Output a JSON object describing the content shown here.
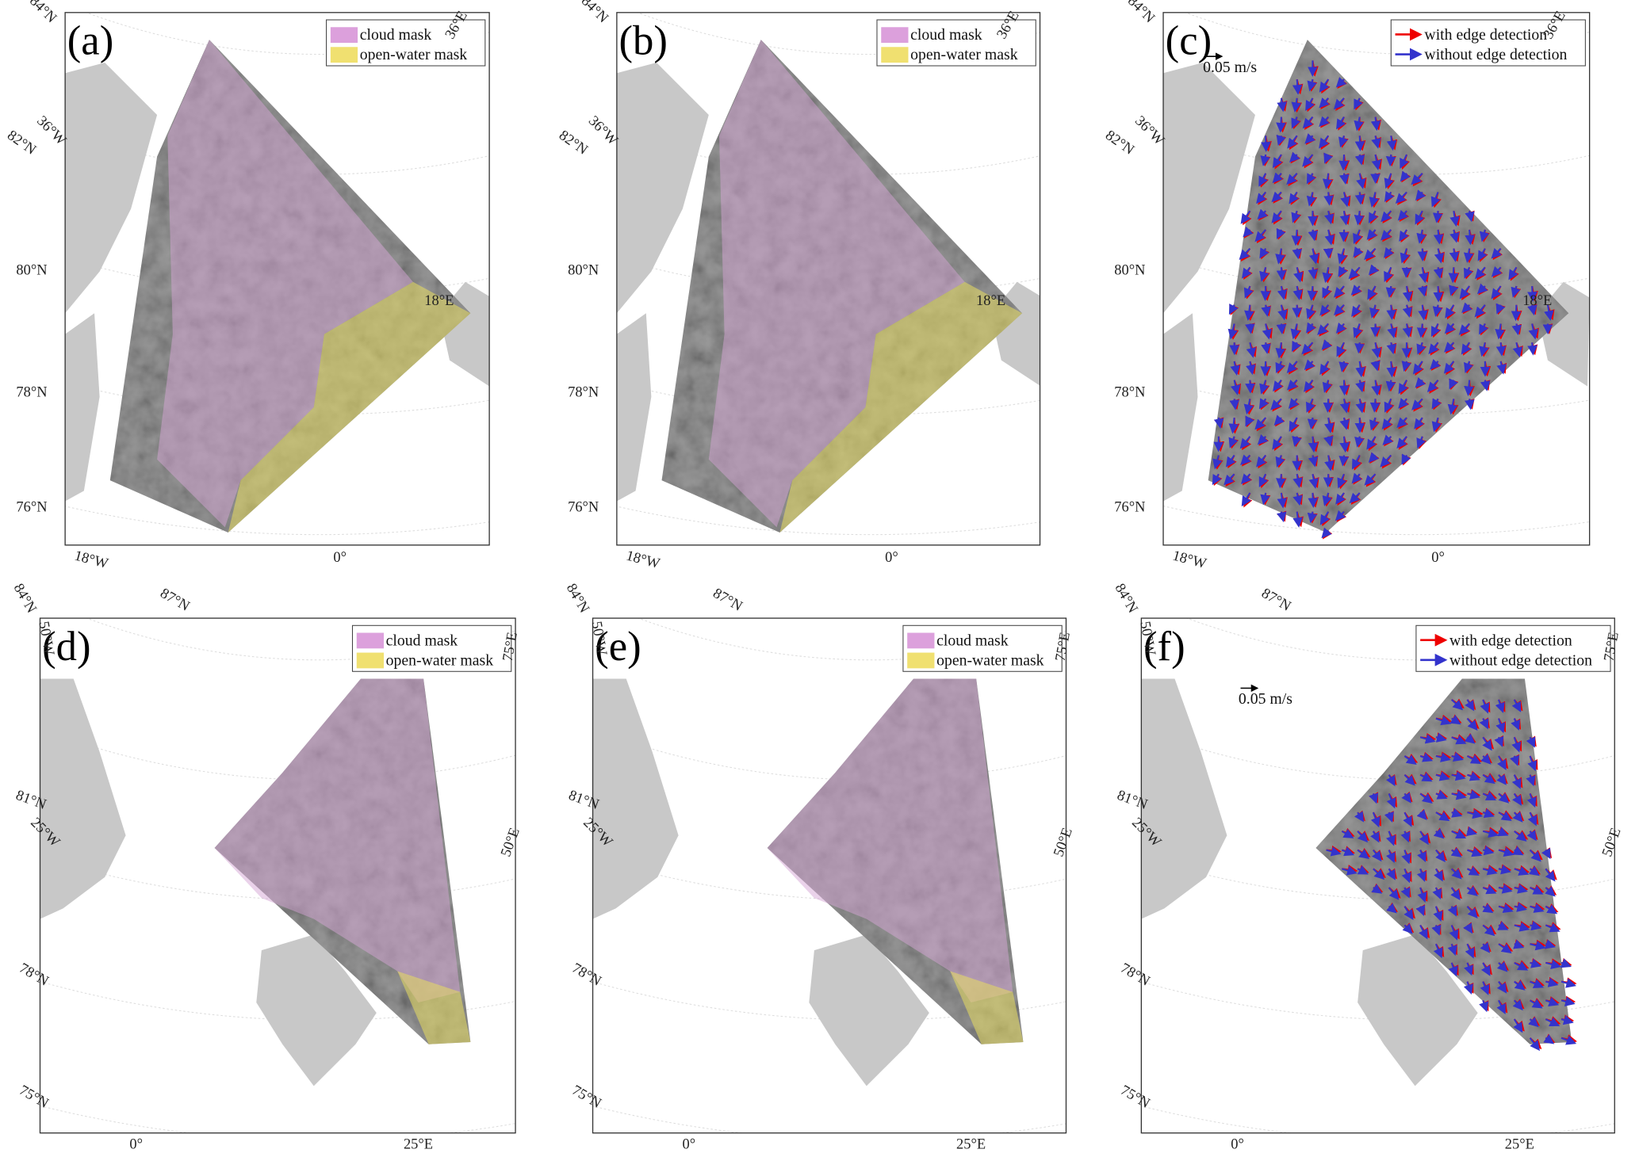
{
  "panels": [
    {
      "label": "(a)",
      "legend": [
        "cloud mask",
        "open-water mask"
      ],
      "graticule": [
        "84°N",
        "36°E",
        "82°N",
        "36°W",
        "80°N",
        "18°E",
        "78°N",
        "76°N",
        "18°W",
        "0°"
      ]
    },
    {
      "label": "(b)",
      "legend": [
        "cloud mask",
        "open-water mask"
      ],
      "graticule": [
        "84°N",
        "36°E",
        "82°N",
        "36°W",
        "80°N",
        "18°E",
        "78°N",
        "76°N",
        "18°W",
        "0°"
      ]
    },
    {
      "label": "(c)",
      "legend": [
        "with edge detection",
        "without edge detection"
      ],
      "scale": "0.05 m/s",
      "graticule": [
        "84°N",
        "36°E",
        "82°N",
        "36°W",
        "80°N",
        "18°E",
        "78°N",
        "76°N",
        "18°W",
        "0°"
      ]
    },
    {
      "label": "(d)",
      "legend": [
        "cloud mask",
        "open-water mask"
      ],
      "graticule": [
        "84°N",
        "87°N",
        "50°W",
        "75°E",
        "81°N",
        "25°W",
        "50°E",
        "78°N",
        "75°N",
        "0°",
        "25°E"
      ]
    },
    {
      "label": "(e)",
      "legend": [
        "cloud mask",
        "open-water mask"
      ],
      "graticule": [
        "84°N",
        "87°N",
        "50°W",
        "75°E",
        "81°N",
        "25°W",
        "50°E",
        "78°N",
        "75°N",
        "0°",
        "25°E"
      ]
    },
    {
      "label": "(f)",
      "legend": [
        "with edge detection",
        "without edge detection"
      ],
      "scale": "0.05 m/s",
      "graticule": [
        "84°N",
        "87°N",
        "50°W",
        "75°E",
        "81°N",
        "25°W",
        "50°E",
        "78°N",
        "75°N",
        "0°",
        "25°E"
      ]
    }
  ]
}
